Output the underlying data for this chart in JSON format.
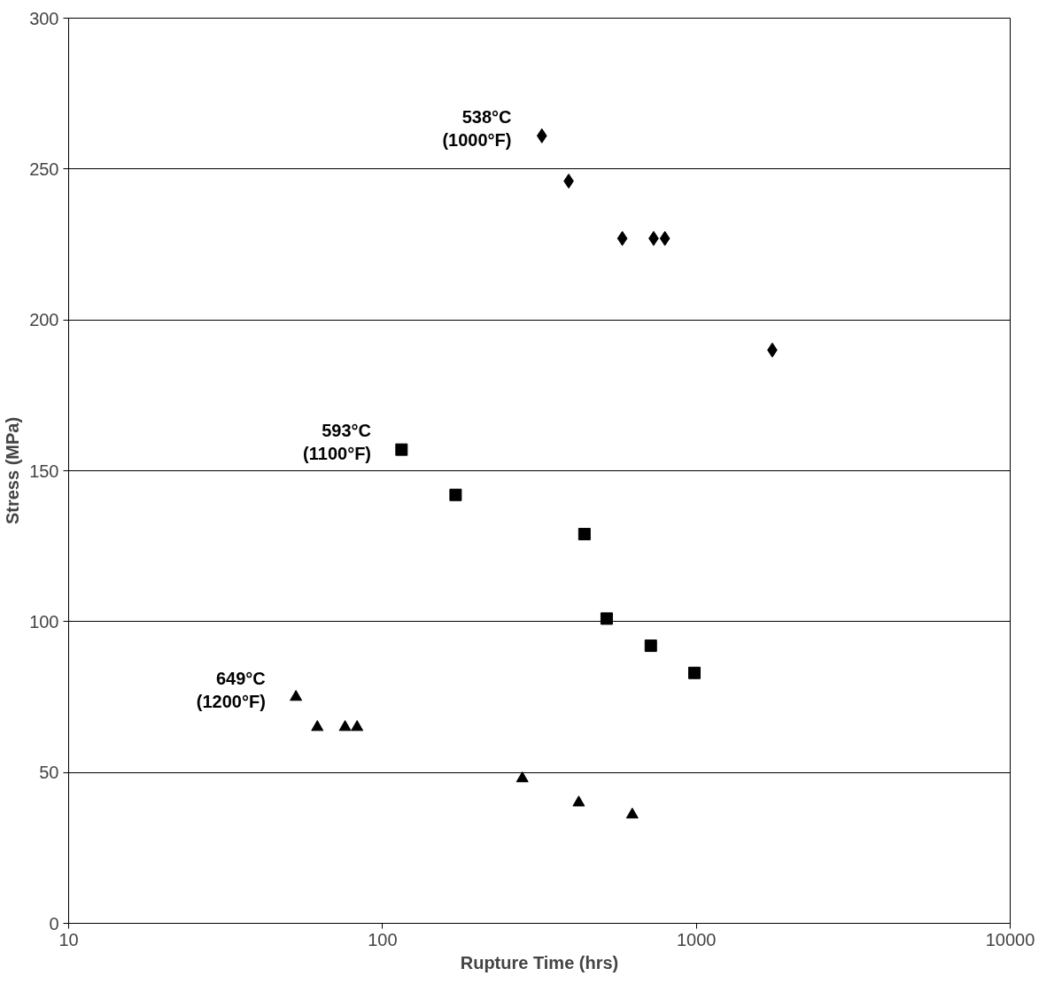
{
  "chart_data": {
    "type": "scatter",
    "xlabel": "Rupture Time (hrs)",
    "ylabel": "Stress (MPa)",
    "log": "x",
    "grid": "y",
    "xlim": [
      10,
      10000
    ],
    "xticks": [
      10,
      100,
      1000,
      10000
    ],
    "ylim": [
      0,
      300
    ],
    "yticks": [
      0,
      50,
      100,
      150,
      200,
      250,
      300
    ],
    "series": [
      {
        "name": "538°C (1000°F)",
        "color": "#000000",
        "marker": "diamond",
        "x": [
          322,
          392,
          581,
          731,
          794,
          1746
        ],
        "values": [
          261,
          246,
          227,
          227,
          227,
          190
        ]
      },
      {
        "name": "593°C (1100°F)",
        "color": "#000000",
        "marker": "square",
        "x": [
          115,
          171,
          440,
          518,
          716,
          986
        ],
        "values": [
          157,
          142,
          129,
          101,
          92,
          83
        ]
      },
      {
        "name": "649°C (1200°F)",
        "color": "#000000",
        "marker": "triangle",
        "x": [
          53,
          62,
          76,
          83,
          279,
          422,
          625
        ],
        "values": [
          75,
          65,
          65,
          65,
          48,
          40,
          36
        ]
      }
    ]
  }
}
